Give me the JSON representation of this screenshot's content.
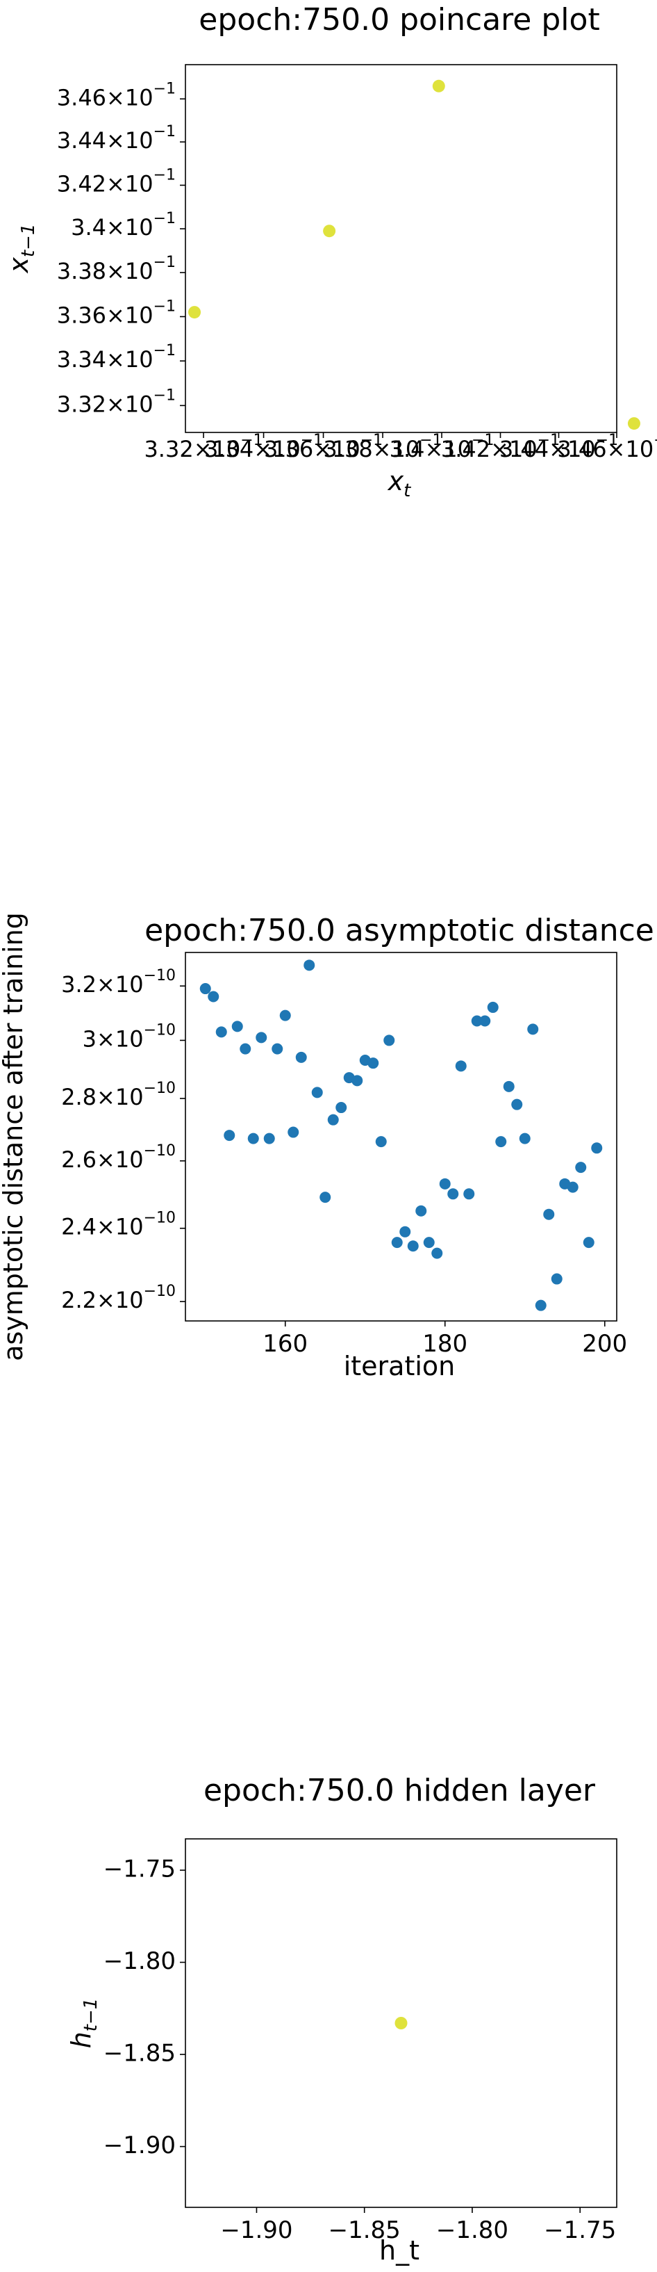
{
  "chart_data": [
    {
      "type": "scatter",
      "title": "epoch:750.0 poincare plot",
      "xlabel": "x_t",
      "ylabel": "x_{t-1}",
      "xscale": "log",
      "yscale": "log",
      "xlim": [
        0.3314,
        0.346
      ],
      "ylim": [
        0.3308,
        0.3476
      ],
      "x_tick_labels": [
        {
          "value": 0.332,
          "mantissa": "3.32"
        },
        {
          "value": 0.334,
          "mantissa": "3.34"
        },
        {
          "value": 0.336,
          "mantissa": "3.36"
        },
        {
          "value": 0.338,
          "mantissa": "3.38"
        },
        {
          "value": 0.34,
          "mantissa": "3.4"
        },
        {
          "value": 0.342,
          "mantissa": "3.42"
        },
        {
          "value": 0.344,
          "mantissa": "3.44"
        },
        {
          "value": 0.346,
          "mantissa": "3.46"
        }
      ],
      "y_tick_labels": [
        {
          "value": 0.332,
          "mantissa": "3.32"
        },
        {
          "value": 0.334,
          "mantissa": "3.34"
        },
        {
          "value": 0.336,
          "mantissa": "3.36"
        },
        {
          "value": 0.338,
          "mantissa": "3.38"
        },
        {
          "value": 0.34,
          "mantissa": "3.4"
        },
        {
          "value": 0.342,
          "mantissa": "3.42"
        },
        {
          "value": 0.344,
          "mantissa": "3.44"
        },
        {
          "value": 0.346,
          "mantissa": "3.46"
        }
      ],
      "tick_exponent": "−1",
      "x": [
        0.3317,
        0.3362,
        0.3399,
        0.3466
      ],
      "y": [
        0.3362,
        0.3399,
        0.3466,
        0.3312
      ],
      "marker_color": "#dfe23c",
      "grid": false
    },
    {
      "type": "scatter",
      "title": "epoch:750.0 asymptotic distance",
      "xlabel": "iteration",
      "ylabel": "asymptotic distance after training",
      "yscale": "log",
      "xlim": [
        147.5,
        201.5
      ],
      "ylim": [
        2.15e-10,
        3.33e-10
      ],
      "x_ticks": [
        160,
        180,
        200
      ],
      "y_tick_labels": [
        {
          "value": 2.2e-10,
          "mantissa": "2.2"
        },
        {
          "value": 2.4e-10,
          "mantissa": "2.4"
        },
        {
          "value": 2.6e-10,
          "mantissa": "2.6"
        },
        {
          "value": 2.8e-10,
          "mantissa": "2.8"
        },
        {
          "value": 3e-10,
          "mantissa": "3"
        },
        {
          "value": 3.2e-10,
          "mantissa": "3.2"
        }
      ],
      "tick_exponent": "−10",
      "x": [
        150,
        151,
        152,
        153,
        154,
        155,
        156,
        157,
        158,
        159,
        160,
        161,
        162,
        163,
        164,
        165,
        166,
        167,
        168,
        169,
        170,
        171,
        172,
        173,
        174,
        175,
        176,
        177,
        178,
        179,
        180,
        181,
        182,
        183,
        184,
        185,
        186,
        187,
        188,
        189,
        190,
        191,
        192,
        193,
        194,
        195,
        196,
        197,
        198,
        199
      ],
      "y": [
        3.19e-10,
        3.16e-10,
        3.03e-10,
        2.68e-10,
        3.05e-10,
        2.97e-10,
        2.67e-10,
        3.01e-10,
        2.67e-10,
        2.97e-10,
        3.09e-10,
        2.69e-10,
        2.94e-10,
        3.28e-10,
        2.82e-10,
        2.49e-10,
        2.73e-10,
        2.77e-10,
        2.87e-10,
        2.86e-10,
        2.93e-10,
        2.92e-10,
        2.66e-10,
        3e-10,
        2.36e-10,
        2.39e-10,
        2.35e-10,
        2.45e-10,
        2.36e-10,
        2.33e-10,
        2.53e-10,
        2.5e-10,
        2.91e-10,
        2.5e-10,
        3.07e-10,
        3.07e-10,
        3.12e-10,
        2.66e-10,
        2.84e-10,
        2.78e-10,
        2.67e-10,
        3.04e-10,
        2.19e-10,
        2.44e-10,
        2.26e-10,
        2.53e-10,
        2.52e-10,
        2.58e-10,
        2.36e-10,
        2.64e-10
      ],
      "marker_color": "#1f77b4",
      "grid": false
    },
    {
      "type": "scatter",
      "title": "epoch:750.0 hidden layer",
      "xlabel": "h_t",
      "ylabel": "h_{t-1}",
      "xlim": [
        -1.933,
        -1.733
      ],
      "ylim": [
        -1.933,
        -1.733
      ],
      "x_ticks": [
        -1.9,
        -1.85,
        -1.8,
        -1.75
      ],
      "y_ticks": [
        -1.9,
        -1.85,
        -1.8,
        -1.75
      ],
      "tick_labels": [
        "−1.90",
        "−1.85",
        "−1.80",
        "−1.75"
      ],
      "x": [
        -1.833
      ],
      "y": [
        -1.833
      ],
      "marker_color": "#dfe23c",
      "grid": false
    }
  ]
}
